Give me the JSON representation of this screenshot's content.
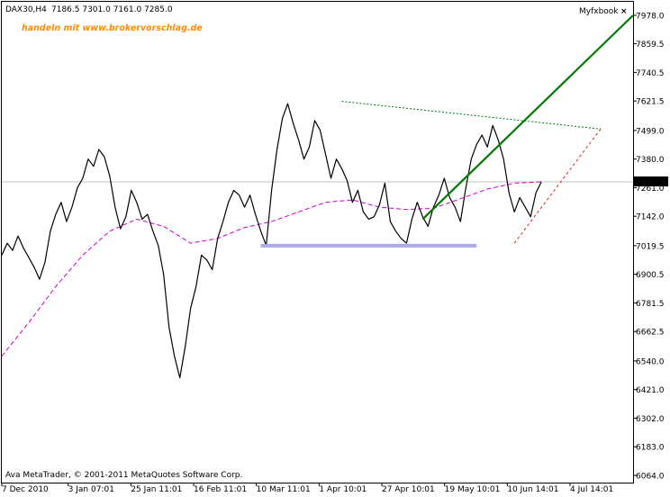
{
  "header": {
    "symbol": "DAX30,H4",
    "ohlc": "7186.5 7301.0 7161.0 7285.0",
    "promo_text": "handeln mit www.brokervorschlag.de",
    "indicator_label": "Myfxbook",
    "close_glyph": "×"
  },
  "footer": {
    "copyright": "Ava MetaTrader, © 2001-2011 MetaQuotes Software Corp."
  },
  "colors": {
    "price": "#000000",
    "ma": "#cc00cc",
    "support": "#aaaaee",
    "trend": "#007a00",
    "channel_dotted": "#007a00",
    "red_dashed": "#dd2222",
    "promo": "#ff8c00",
    "axis": "#000000",
    "current_line": "#c0c0c0"
  },
  "chart_data": {
    "type": "line",
    "title": "DAX30,H4",
    "ylim": [
      6064.0,
      7978.0
    ],
    "y_ticks": [
      7978.0,
      7859.5,
      7740.5,
      7621.5,
      7499.0,
      7380.0,
      7261.0,
      7142.0,
      7019.5,
      6900.5,
      6781.5,
      6662.5,
      6540.0,
      6421.0,
      6302.0,
      6183.0,
      6064.0
    ],
    "current_price": "7285.0",
    "x_ticks": [
      "7 Dec 2010",
      "3 Jan 07:01",
      "25 Jan 11:01",
      "16 Feb 11:01",
      "10 Mar 11:01",
      "1 Apr 10:01",
      "27 Apr 10:01",
      "19 May 10:01",
      "10 Jun 14:01",
      "4 Jul 14:01"
    ],
    "series": [
      {
        "role": "price",
        "points": [
          [
            0,
            6980
          ],
          [
            1,
            7030
          ],
          [
            2,
            7000
          ],
          [
            3,
            7060
          ],
          [
            4,
            7010
          ],
          [
            5,
            6970
          ],
          [
            6,
            6930
          ],
          [
            7,
            6880
          ],
          [
            8,
            6950
          ],
          [
            9,
            7080
          ],
          [
            10,
            7150
          ],
          [
            11,
            7200
          ],
          [
            12,
            7120
          ],
          [
            13,
            7180
          ],
          [
            14,
            7260
          ],
          [
            15,
            7300
          ],
          [
            16,
            7380
          ],
          [
            17,
            7350
          ],
          [
            18,
            7420
          ],
          [
            19,
            7390
          ],
          [
            20,
            7310
          ],
          [
            21,
            7180
          ],
          [
            22,
            7090
          ],
          [
            23,
            7140
          ],
          [
            24,
            7250
          ],
          [
            25,
            7200
          ],
          [
            26,
            7130
          ],
          [
            27,
            7150
          ],
          [
            28,
            7080
          ],
          [
            29,
            7020
          ],
          [
            30,
            6900
          ],
          [
            31,
            6680
          ],
          [
            32,
            6560
          ],
          [
            33,
            6470
          ],
          [
            34,
            6600
          ],
          [
            35,
            6760
          ],
          [
            36,
            6850
          ],
          [
            37,
            6980
          ],
          [
            38,
            6960
          ],
          [
            39,
            6920
          ],
          [
            40,
            7050
          ],
          [
            41,
            7120
          ],
          [
            42,
            7200
          ],
          [
            43,
            7250
          ],
          [
            44,
            7230
          ],
          [
            45,
            7180
          ],
          [
            46,
            7230
          ],
          [
            47,
            7150
          ],
          [
            48,
            7080
          ],
          [
            49,
            7020
          ],
          [
            50,
            7250
          ],
          [
            51,
            7420
          ],
          [
            52,
            7550
          ],
          [
            53,
            7610
          ],
          [
            54,
            7530
          ],
          [
            55,
            7460
          ],
          [
            56,
            7380
          ],
          [
            57,
            7430
          ],
          [
            58,
            7540
          ],
          [
            59,
            7500
          ],
          [
            60,
            7400
          ],
          [
            61,
            7300
          ],
          [
            62,
            7380
          ],
          [
            63,
            7340
          ],
          [
            64,
            7290
          ],
          [
            65,
            7200
          ],
          [
            66,
            7250
          ],
          [
            67,
            7160
          ],
          [
            68,
            7130
          ],
          [
            69,
            7140
          ],
          [
            70,
            7190
          ],
          [
            71,
            7280
          ],
          [
            72,
            7120
          ],
          [
            73,
            7080
          ],
          [
            74,
            7050
          ],
          [
            75,
            7030
          ],
          [
            76,
            7130
          ],
          [
            77,
            7200
          ],
          [
            78,
            7140
          ],
          [
            79,
            7100
          ],
          [
            80,
            7180
          ],
          [
            81,
            7230
          ],
          [
            82,
            7300
          ],
          [
            83,
            7220
          ],
          [
            84,
            7180
          ],
          [
            85,
            7120
          ],
          [
            86,
            7260
          ],
          [
            87,
            7380
          ],
          [
            88,
            7440
          ],
          [
            89,
            7480
          ],
          [
            90,
            7430
          ],
          [
            91,
            7520
          ],
          [
            92,
            7460
          ],
          [
            93,
            7380
          ],
          [
            94,
            7240
          ],
          [
            95,
            7160
          ],
          [
            96,
            7220
          ],
          [
            97,
            7180
          ],
          [
            98,
            7140
          ],
          [
            99,
            7240
          ],
          [
            100,
            7285
          ]
        ]
      },
      {
        "role": "moving-average",
        "points": [
          [
            0,
            6560
          ],
          [
            5,
            6700
          ],
          [
            10,
            6850
          ],
          [
            15,
            6980
          ],
          [
            20,
            7080
          ],
          [
            25,
            7130
          ],
          [
            30,
            7100
          ],
          [
            35,
            7030
          ],
          [
            40,
            7050
          ],
          [
            45,
            7095
          ],
          [
            50,
            7120
          ],
          [
            55,
            7160
          ],
          [
            60,
            7200
          ],
          [
            65,
            7210
          ],
          [
            70,
            7180
          ],
          [
            75,
            7170
          ],
          [
            80,
            7175
          ],
          [
            85,
            7215
          ],
          [
            90,
            7255
          ],
          [
            95,
            7280
          ],
          [
            100,
            7285
          ]
        ]
      }
    ],
    "annotations": [
      {
        "role": "support",
        "from": [
          48,
          7019.5
        ],
        "to": [
          88,
          7019.5
        ]
      },
      {
        "role": "trend",
        "from": [
          78,
          7130
        ],
        "to": [
          117,
          7978
        ]
      },
      {
        "role": "channel-top",
        "from": [
          63,
          7620
        ],
        "to": [
          111,
          7505
        ]
      },
      {
        "role": "channel-bottom",
        "from": [
          95,
          7030
        ],
        "to": [
          111,
          7505
        ]
      }
    ]
  }
}
